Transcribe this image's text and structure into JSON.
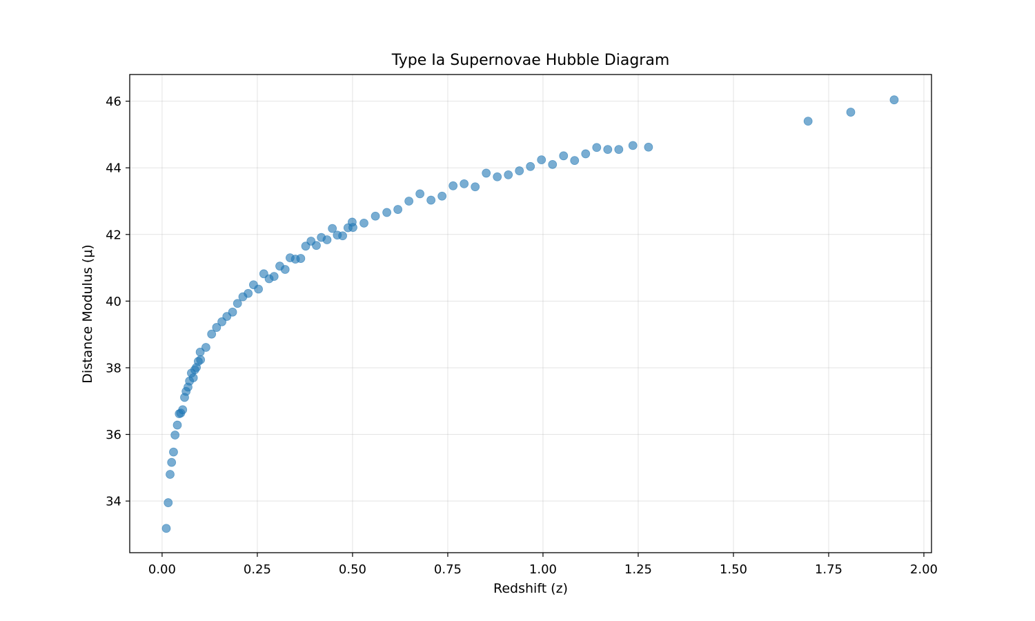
{
  "chart_data": {
    "type": "scatter",
    "title": "Type Ia Supernovae Hubble Diagram",
    "xlabel": "Redshift (z)",
    "ylabel": "Distance Modulus (μ)",
    "xlim": [
      -0.085,
      2.02
    ],
    "ylim": [
      32.45,
      46.8
    ],
    "xticks": [
      0.0,
      0.25,
      0.5,
      0.75,
      1.0,
      1.25,
      1.5,
      1.75,
      2.0
    ],
    "xtick_labels": [
      "0.00",
      "0.25",
      "0.50",
      "0.75",
      "1.00",
      "1.25",
      "1.50",
      "1.75",
      "2.00"
    ],
    "yticks": [
      34,
      36,
      38,
      40,
      42,
      44,
      46
    ],
    "ytick_labels": [
      "34",
      "36",
      "38",
      "40",
      "42",
      "44",
      "46"
    ],
    "grid": true,
    "marker_color": "#1f77b4",
    "marker_alpha": 0.6,
    "points": [
      [
        0.011,
        33.18
      ],
      [
        0.016,
        33.95
      ],
      [
        0.021,
        34.8
      ],
      [
        0.025,
        35.16
      ],
      [
        0.03,
        35.47
      ],
      [
        0.034,
        35.98
      ],
      [
        0.04,
        36.28
      ],
      [
        0.045,
        36.62
      ],
      [
        0.049,
        36.64
      ],
      [
        0.054,
        36.74
      ],
      [
        0.059,
        37.11
      ],
      [
        0.063,
        37.29
      ],
      [
        0.068,
        37.42
      ],
      [
        0.072,
        37.6
      ],
      [
        0.077,
        37.84
      ],
      [
        0.082,
        37.7
      ],
      [
        0.086,
        37.94
      ],
      [
        0.09,
        38.01
      ],
      [
        0.095,
        38.19
      ],
      [
        0.1,
        38.47
      ],
      [
        0.101,
        38.24
      ],
      [
        0.115,
        38.61
      ],
      [
        0.13,
        39.01
      ],
      [
        0.143,
        39.21
      ],
      [
        0.157,
        39.38
      ],
      [
        0.17,
        39.54
      ],
      [
        0.185,
        39.67
      ],
      [
        0.198,
        39.93
      ],
      [
        0.212,
        40.13
      ],
      [
        0.226,
        40.23
      ],
      [
        0.24,
        40.49
      ],
      [
        0.253,
        40.36
      ],
      [
        0.267,
        40.82
      ],
      [
        0.281,
        40.67
      ],
      [
        0.294,
        40.74
      ],
      [
        0.309,
        41.05
      ],
      [
        0.323,
        40.95
      ],
      [
        0.336,
        41.3
      ],
      [
        0.35,
        41.26
      ],
      [
        0.364,
        41.28
      ],
      [
        0.377,
        41.65
      ],
      [
        0.391,
        41.8
      ],
      [
        0.405,
        41.67
      ],
      [
        0.418,
        41.91
      ],
      [
        0.433,
        41.84
      ],
      [
        0.447,
        42.18
      ],
      [
        0.46,
        41.98
      ],
      [
        0.474,
        41.96
      ],
      [
        0.488,
        42.2
      ],
      [
        0.499,
        42.37
      ],
      [
        0.501,
        42.21
      ],
      [
        0.53,
        42.34
      ],
      [
        0.56,
        42.55
      ],
      [
        0.59,
        42.66
      ],
      [
        0.619,
        42.75
      ],
      [
        0.648,
        43.0
      ],
      [
        0.677,
        43.22
      ],
      [
        0.706,
        43.03
      ],
      [
        0.735,
        43.15
      ],
      [
        0.764,
        43.46
      ],
      [
        0.793,
        43.52
      ],
      [
        0.822,
        43.43
      ],
      [
        0.851,
        43.84
      ],
      [
        0.88,
        43.73
      ],
      [
        0.909,
        43.79
      ],
      [
        0.938,
        43.91
      ],
      [
        0.967,
        44.04
      ],
      [
        0.996,
        44.24
      ],
      [
        1.025,
        44.1
      ],
      [
        1.054,
        44.36
      ],
      [
        1.083,
        44.22
      ],
      [
        1.112,
        44.42
      ],
      [
        1.141,
        44.61
      ],
      [
        1.17,
        44.55
      ],
      [
        1.199,
        44.55
      ],
      [
        1.236,
        44.67
      ],
      [
        1.277,
        44.62
      ],
      [
        1.696,
        45.4
      ],
      [
        1.808,
        45.67
      ],
      [
        1.922,
        46.04
      ]
    ]
  }
}
